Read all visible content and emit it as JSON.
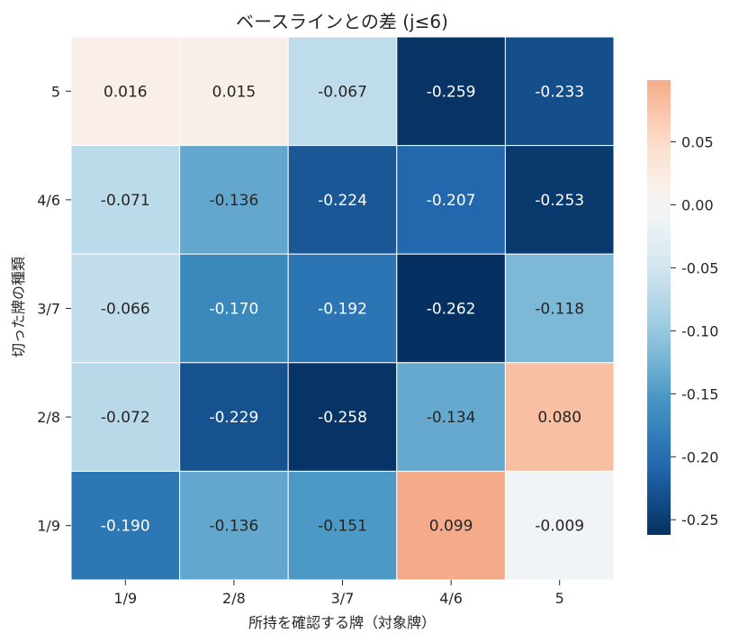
{
  "chart_data": {
    "type": "heatmap",
    "title": "ベースラインとの差 (j≤6)",
    "xlabel": "所持を確認する牌（対象牌）",
    "ylabel": "切った牌の種類",
    "x_categories": [
      "1/9",
      "2/8",
      "3/7",
      "4/6",
      "5"
    ],
    "y_categories": [
      "5",
      "4/6",
      "3/7",
      "2/8",
      "1/9"
    ],
    "values": [
      [
        0.016,
        0.015,
        -0.067,
        -0.259,
        -0.233
      ],
      [
        -0.071,
        -0.136,
        -0.224,
        -0.207,
        -0.253
      ],
      [
        -0.066,
        -0.17,
        -0.192,
        -0.262,
        -0.118
      ],
      [
        -0.072,
        -0.229,
        -0.258,
        -0.134,
        0.08
      ],
      [
        -0.19,
        -0.136,
        -0.151,
        0.099,
        -0.009
      ]
    ],
    "labels": [
      [
        "0.016",
        "0.015",
        "-0.067",
        "-0.259",
        "-0.233"
      ],
      [
        "-0.071",
        "-0.136",
        "-0.224",
        "-0.207",
        "-0.253"
      ],
      [
        "-0.066",
        "-0.170",
        "-0.192",
        "-0.262",
        "-0.118"
      ],
      [
        "-0.072",
        "-0.229",
        "-0.258",
        "-0.134",
        "0.080"
      ],
      [
        "-0.190",
        "-0.136",
        "-0.151",
        "0.099",
        "-0.009"
      ]
    ],
    "colorbar": {
      "colormap": "RdBu_r",
      "center": 0,
      "vmin": -0.262,
      "vmax": 0.099,
      "ticks": [
        0.05,
        0.0,
        -0.05,
        -0.1,
        -0.15,
        -0.2,
        -0.25
      ],
      "tick_labels": [
        "0.05",
        "0.00",
        "-0.05",
        "-0.10",
        "-0.15",
        "-0.20",
        "-0.25"
      ]
    }
  }
}
